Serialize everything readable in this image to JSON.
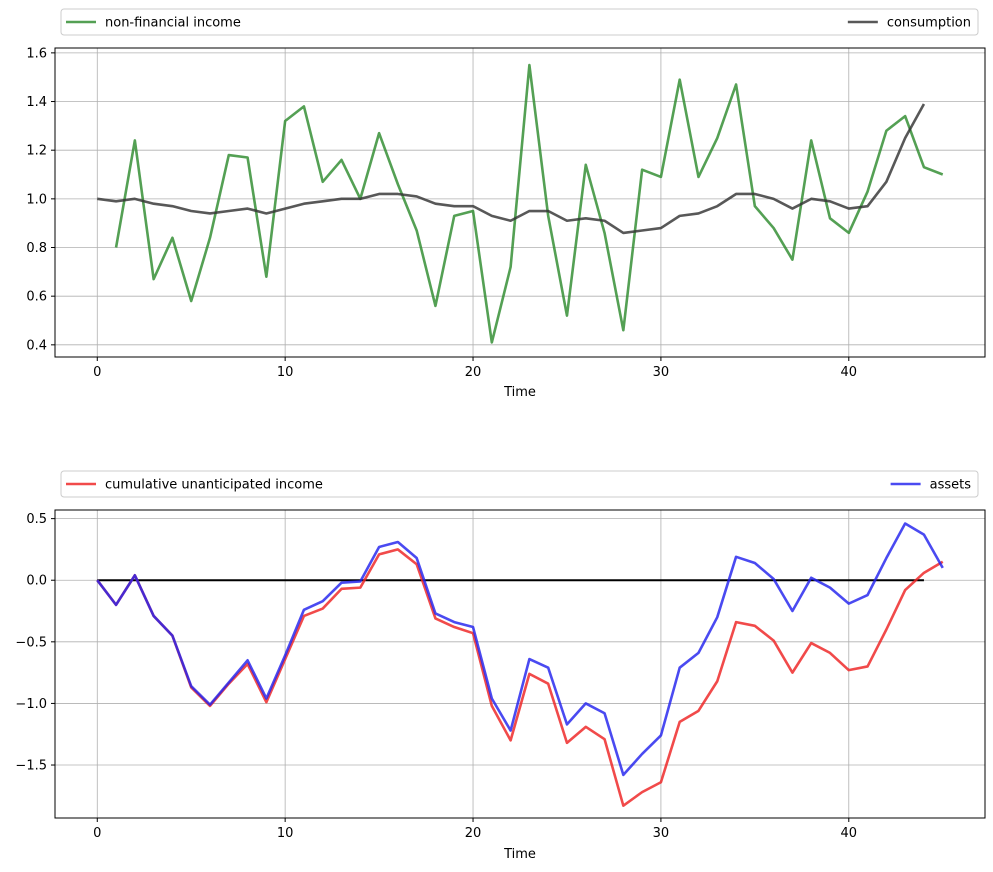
{
  "chart_data": [
    {
      "type": "line",
      "xlabel": "Time",
      "ylabel": "",
      "xlim": [
        -2.25,
        47.25
      ],
      "ylim": [
        0.35,
        1.62
      ],
      "x_ticks": [
        0,
        10,
        20,
        30,
        40
      ],
      "x_tick_labels": [
        "0",
        "10",
        "20",
        "30",
        "40"
      ],
      "y_ticks": [
        0.4,
        0.6,
        0.8,
        1.0,
        1.2,
        1.4,
        1.6
      ],
      "y_tick_labels": [
        "0.4",
        "0.6",
        "0.8",
        "1.0",
        "1.2",
        "1.4",
        "1.6"
      ],
      "grid": true,
      "legend_placement": "above",
      "series": [
        {
          "name": "non-financial income",
          "color": "#2e8b2e",
          "x": [
            1,
            2,
            3,
            4,
            5,
            6,
            7,
            8,
            9,
            10,
            11,
            12,
            13,
            14,
            15,
            16,
            17,
            18,
            19,
            20,
            21,
            22,
            23,
            24,
            25,
            26,
            27,
            28,
            29,
            30,
            31,
            32,
            33,
            34,
            35,
            36,
            37,
            38,
            39,
            40,
            41,
            42,
            43,
            44,
            45
          ],
          "values": [
            0.8,
            1.24,
            0.67,
            0.84,
            0.58,
            0.84,
            1.18,
            1.17,
            0.68,
            1.32,
            1.38,
            1.07,
            1.16,
            1.0,
            1.27,
            1.06,
            0.87,
            0.56,
            0.93,
            0.95,
            0.41,
            0.72,
            1.55,
            0.93,
            0.52,
            1.14,
            0.86,
            0.46,
            1.12,
            1.09,
            1.49,
            1.09,
            1.25,
            1.47,
            0.97,
            0.88,
            0.75,
            1.24,
            0.92,
            0.86,
            1.03,
            1.28,
            1.34,
            1.13,
            1.1
          ]
        },
        {
          "name": "consumption",
          "color": "#333333",
          "x": [
            0,
            1,
            2,
            3,
            4,
            5,
            6,
            7,
            8,
            9,
            10,
            11,
            12,
            13,
            14,
            15,
            16,
            17,
            18,
            19,
            20,
            21,
            22,
            23,
            24,
            25,
            26,
            27,
            28,
            29,
            30,
            31,
            32,
            33,
            34,
            35,
            36,
            37,
            38,
            39,
            40,
            41,
            42,
            43,
            44
          ],
          "values": [
            1.0,
            0.99,
            1.0,
            0.98,
            0.97,
            0.95,
            0.94,
            0.95,
            0.96,
            0.94,
            0.96,
            0.98,
            0.99,
            1.0,
            1.0,
            1.02,
            1.02,
            1.01,
            0.98,
            0.97,
            0.97,
            0.93,
            0.91,
            0.95,
            0.95,
            0.91,
            0.92,
            0.91,
            0.86,
            0.87,
            0.88,
            0.93,
            0.94,
            0.97,
            1.02,
            1.02,
            1.0,
            0.96,
            1.0,
            0.99,
            0.96,
            0.97,
            1.07,
            1.25,
            1.39
          ]
        }
      ]
    },
    {
      "type": "line",
      "xlabel": "Time",
      "ylabel": "",
      "xlim": [
        -2.25,
        47.25
      ],
      "ylim": [
        -1.93,
        0.57
      ],
      "x_ticks": [
        0,
        10,
        20,
        30,
        40
      ],
      "x_tick_labels": [
        "0",
        "10",
        "20",
        "30",
        "40"
      ],
      "y_ticks": [
        -1.5,
        -1.0,
        -0.5,
        0.0,
        0.5
      ],
      "y_tick_labels": [
        "−1.5",
        "−1.0",
        "−0.5",
        "0.0",
        "0.5"
      ],
      "grid": true,
      "legend_placement": "above",
      "reference_line": {
        "y": 0,
        "x": [
          0,
          44
        ],
        "color": "#000000"
      },
      "series": [
        {
          "name": "cumulative unanticipated income",
          "color": "#ee2222",
          "x": [
            0,
            1,
            2,
            3,
            4,
            5,
            6,
            7,
            8,
            9,
            10,
            11,
            12,
            13,
            14,
            15,
            16,
            17,
            18,
            19,
            20,
            21,
            22,
            23,
            24,
            25,
            26,
            27,
            28,
            29,
            30,
            31,
            32,
            33,
            34,
            35,
            36,
            37,
            38,
            39,
            40,
            41,
            42,
            43,
            44,
            45
          ],
          "values": [
            0.0,
            -0.2,
            0.04,
            -0.29,
            -0.45,
            -0.87,
            -1.02,
            -0.84,
            -0.68,
            -0.99,
            -0.64,
            -0.29,
            -0.23,
            -0.07,
            -0.06,
            0.21,
            0.25,
            0.13,
            -0.31,
            -0.38,
            -0.43,
            -1.02,
            -1.3,
            -0.76,
            -0.84,
            -1.32,
            -1.19,
            -1.29,
            -1.83,
            -1.72,
            -1.64,
            -1.15,
            -1.06,
            -0.82,
            -0.34,
            -0.37,
            -0.49,
            -0.75,
            -0.51,
            -0.59,
            -0.73,
            -0.7,
            -0.4,
            -0.08,
            0.06,
            0.15
          ]
        },
        {
          "name": "assets",
          "color": "#2222ee",
          "x": [
            0,
            1,
            2,
            3,
            4,
            5,
            6,
            7,
            8,
            9,
            10,
            11,
            12,
            13,
            14,
            15,
            16,
            17,
            18,
            19,
            20,
            21,
            22,
            23,
            24,
            25,
            26,
            27,
            28,
            29,
            30,
            31,
            32,
            33,
            34,
            35,
            36,
            37,
            38,
            39,
            40,
            41,
            42,
            43,
            44,
            45
          ],
          "values": [
            0.0,
            -0.2,
            0.04,
            -0.29,
            -0.45,
            -0.86,
            -1.01,
            -0.83,
            -0.65,
            -0.96,
            -0.61,
            -0.24,
            -0.17,
            -0.02,
            -0.01,
            0.27,
            0.31,
            0.18,
            -0.27,
            -0.34,
            -0.38,
            -0.96,
            -1.22,
            -0.64,
            -0.71,
            -1.17,
            -1.0,
            -1.08,
            -1.58,
            -1.41,
            -1.26,
            -0.71,
            -0.59,
            -0.3,
            0.19,
            0.14,
            0.01,
            -0.25,
            0.02,
            -0.06,
            -0.19,
            -0.12,
            0.18,
            0.46,
            0.37,
            0.1
          ]
        }
      ]
    }
  ]
}
